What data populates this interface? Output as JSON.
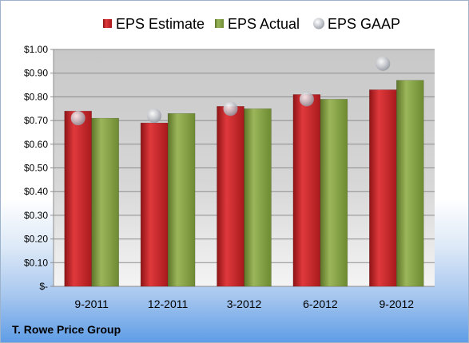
{
  "chart_data": {
    "type": "bar",
    "title": "",
    "xlabel": "",
    "ylabel": "",
    "categories": [
      "9-2011",
      "12-2011",
      "3-2012",
      "6-2012",
      "9-2012"
    ],
    "series": [
      {
        "name": "EPS Estimate",
        "kind": "bar",
        "color": "#c0262a",
        "values": [
          0.74,
          0.69,
          0.76,
          0.81,
          0.83
        ]
      },
      {
        "name": "EPS Actual",
        "kind": "bar",
        "color": "#7f9a3f",
        "values": [
          0.71,
          0.73,
          0.75,
          0.79,
          0.87
        ]
      },
      {
        "name": "EPS GAAP",
        "kind": "marker",
        "color": "#b8bcc4",
        "values": [
          0.71,
          0.72,
          0.75,
          0.79,
          0.94
        ]
      }
    ],
    "ylim": [
      0,
      1.0
    ],
    "y_ticks": [
      {
        "value": 0,
        "label": "$-"
      },
      {
        "value": 0.1,
        "label": "$0.10"
      },
      {
        "value": 0.2,
        "label": "$0.20"
      },
      {
        "value": 0.3,
        "label": "$0.30"
      },
      {
        "value": 0.4,
        "label": "$0.40"
      },
      {
        "value": 0.5,
        "label": "$0.50"
      },
      {
        "value": 0.6,
        "label": "$0.60"
      },
      {
        "value": 0.7,
        "label": "$0.70"
      },
      {
        "value": 0.8,
        "label": "$0.80"
      },
      {
        "value": 0.9,
        "label": "$0.90"
      },
      {
        "value": 1.0,
        "label": "$1.00"
      }
    ],
    "grid": true,
    "legend_position": "top"
  },
  "footer": {
    "company": "T. Rowe Price Group"
  }
}
